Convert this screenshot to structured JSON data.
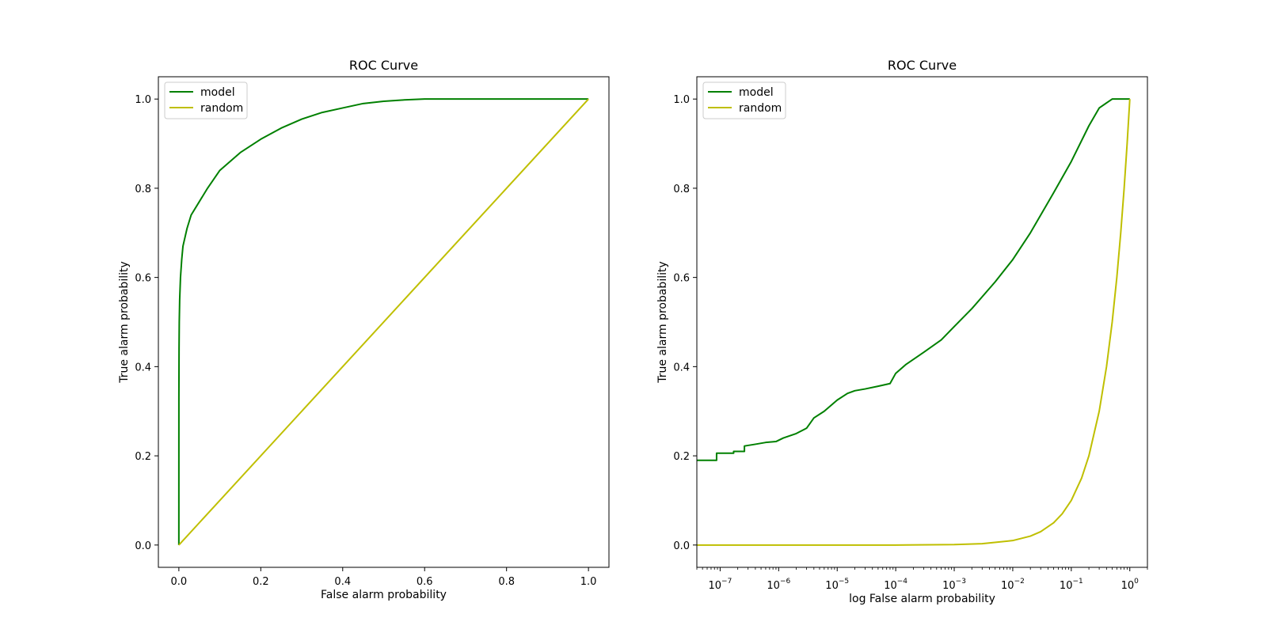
{
  "chart_data": [
    {
      "type": "line",
      "title": "ROC Curve",
      "xlabel": "False alarm probability",
      "ylabel": "True alarm probability",
      "xscale": "linear",
      "xlim": [
        -0.05,
        1.05
      ],
      "ylim": [
        -0.05,
        1.05
      ],
      "xticks": [
        0.0,
        0.2,
        0.4,
        0.6,
        0.8,
        1.0
      ],
      "xtick_labels": [
        "0.0",
        "0.2",
        "0.4",
        "0.6",
        "0.8",
        "1.0"
      ],
      "yticks": [
        0.0,
        0.2,
        0.4,
        0.6,
        0.8,
        1.0
      ],
      "ytick_labels": [
        "0.0",
        "0.2",
        "0.4",
        "0.6",
        "0.8",
        "1.0"
      ],
      "legend": "upper-left",
      "series": [
        {
          "name": "model",
          "color": "#008000",
          "x": [
            0,
            0.0001,
            0.0005,
            0.001,
            0.002,
            0.004,
            0.007,
            0.01,
            0.015,
            0.02,
            0.03,
            0.05,
            0.07,
            0.1,
            0.15,
            0.2,
            0.25,
            0.3,
            0.35,
            0.4,
            0.45,
            0.5,
            0.55,
            0.6,
            0.7,
            0.8,
            0.9,
            1.0
          ],
          "y": [
            0,
            0.33,
            0.44,
            0.5,
            0.55,
            0.6,
            0.64,
            0.67,
            0.69,
            0.71,
            0.74,
            0.77,
            0.8,
            0.84,
            0.88,
            0.91,
            0.935,
            0.955,
            0.97,
            0.98,
            0.99,
            0.995,
            0.998,
            1.0,
            1.0,
            1.0,
            1.0,
            1.0
          ]
        },
        {
          "name": "random",
          "color": "#bfbf00",
          "x": [
            0,
            1
          ],
          "y": [
            0,
            1
          ]
        }
      ]
    },
    {
      "type": "line",
      "title": "ROC Curve",
      "xlabel": "log False alarm probability",
      "ylabel": "True alarm probability",
      "xscale": "log",
      "xlim": [
        4e-08,
        2
      ],
      "ylim": [
        -0.05,
        1.05
      ],
      "xticks": [
        1e-07,
        1e-06,
        1e-05,
        0.0001,
        0.001,
        0.01,
        0.1,
        1
      ],
      "xtick_labels": [
        {
          "base": "10",
          "exp": "−7"
        },
        {
          "base": "10",
          "exp": "−6"
        },
        {
          "base": "10",
          "exp": "−5"
        },
        {
          "base": "10",
          "exp": "−4"
        },
        {
          "base": "10",
          "exp": "−3"
        },
        {
          "base": "10",
          "exp": "−2"
        },
        {
          "base": "10",
          "exp": "−1"
        },
        {
          "base": "10",
          "exp": "0"
        }
      ],
      "yticks": [
        0.0,
        0.2,
        0.4,
        0.6,
        0.8,
        1.0
      ],
      "ytick_labels": [
        "0.0",
        "0.2",
        "0.4",
        "0.6",
        "0.8",
        "1.0"
      ],
      "legend": "upper-left",
      "series": [
        {
          "name": "model",
          "color": "#008000",
          "x": [
            4e-08,
            8.7e-08,
            8.7e-08,
            1.7e-07,
            1.7e-07,
            2.6e-07,
            2.6e-07,
            4e-07,
            6e-07,
            9e-07,
            1.2e-06,
            2e-06,
            3e-06,
            4e-06,
            6e-06,
            1e-05,
            1.5e-05,
            2e-05,
            3e-05,
            5e-05,
            8e-05,
            0.0001,
            0.00015,
            0.0003,
            0.0006,
            0.001,
            0.002,
            0.005,
            0.01,
            0.02,
            0.05,
            0.1,
            0.2,
            0.3,
            0.5,
            0.7,
            1.0
          ],
          "y": [
            0.19,
            0.19,
            0.206,
            0.206,
            0.21,
            0.21,
            0.222,
            0.226,
            0.23,
            0.232,
            0.24,
            0.25,
            0.262,
            0.285,
            0.3,
            0.325,
            0.34,
            0.346,
            0.35,
            0.356,
            0.362,
            0.385,
            0.405,
            0.432,
            0.46,
            0.49,
            0.53,
            0.59,
            0.64,
            0.7,
            0.79,
            0.86,
            0.94,
            0.98,
            1.0,
            1.0,
            1.0
          ]
        },
        {
          "name": "random",
          "color": "#bfbf00",
          "x": [
            4e-08,
            1e-06,
            0.0001,
            0.001,
            0.003,
            0.01,
            0.02,
            0.03,
            0.05,
            0.07,
            0.1,
            0.15,
            0.2,
            0.3,
            0.4,
            0.5,
            0.6,
            0.7,
            0.8,
            0.9,
            1.0
          ],
          "y": [
            0,
            0,
            0,
            0.001,
            0.003,
            0.01,
            0.02,
            0.03,
            0.05,
            0.07,
            0.1,
            0.15,
            0.2,
            0.3,
            0.4,
            0.5,
            0.6,
            0.7,
            0.8,
            0.9,
            1.0
          ]
        }
      ]
    }
  ]
}
